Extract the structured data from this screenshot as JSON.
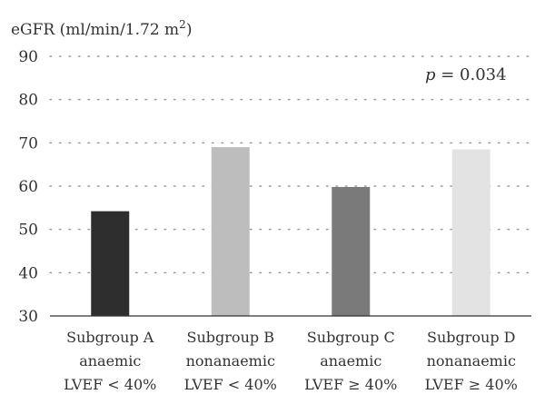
{
  "chart_data": {
    "type": "bar",
    "ylabel": "eGFR (ml/min/1.72 m",
    "ylabel_sup": "2",
    "ylabel_close": ")",
    "ylim": [
      30,
      90
    ],
    "yticks": [
      30,
      40,
      50,
      60,
      70,
      80,
      90
    ],
    "grid": "horizontal dotted",
    "categories": [
      [
        "Subgroup A",
        "anaemic",
        "LVEF < 40%"
      ],
      [
        "Subgroup B",
        "nonanaemic",
        "LVEF < 40%"
      ],
      [
        "Subgroup C",
        "anaemic",
        "LVEF ≥ 40%"
      ],
      [
        "Subgroup D",
        "nonanaemic",
        "LVEF ≥ 40%"
      ]
    ],
    "values": [
      54.2,
      69.0,
      59.8,
      68.5
    ],
    "bar_colors": [
      "#2e2e2e",
      "#bdbdbd",
      "#7a7a7a",
      "#e3e3e3"
    ],
    "annotation": {
      "label": "p",
      "text": " = 0.034"
    }
  }
}
